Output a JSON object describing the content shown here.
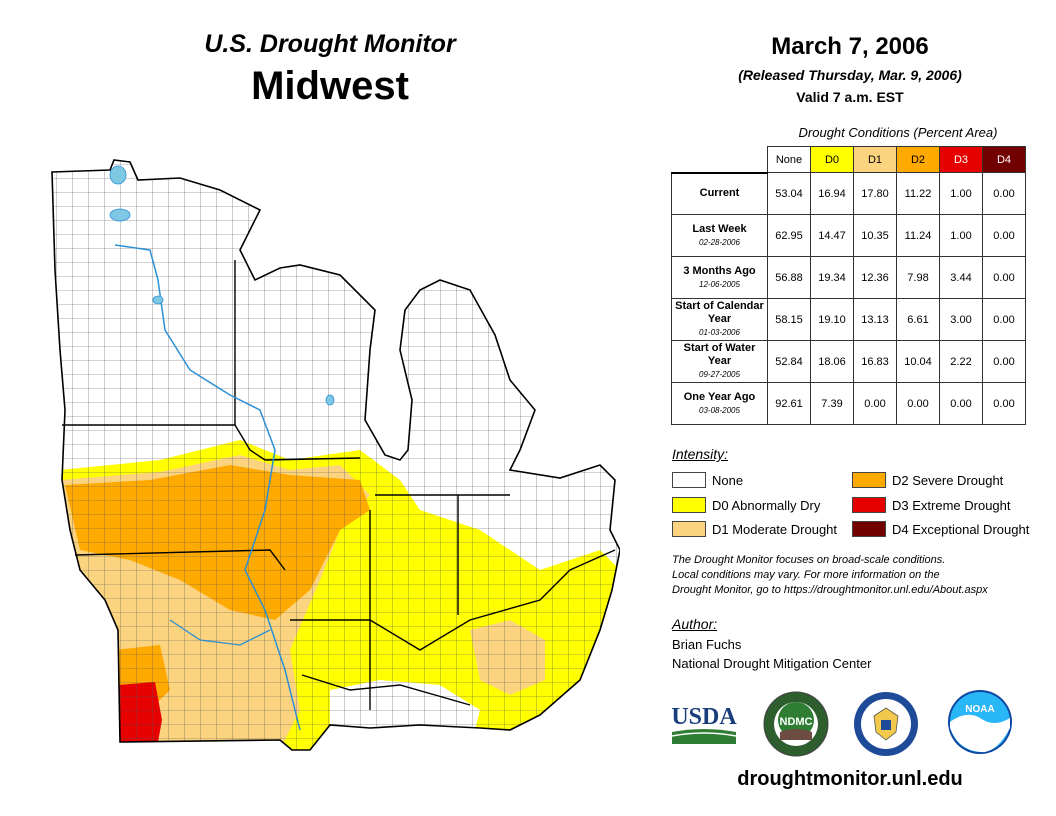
{
  "header": {
    "program": "U.S. Drought Monitor",
    "region": "Midwest",
    "date": "March 7, 2006",
    "released": "(Released Thursday, Mar. 9, 2006)",
    "valid": "Valid 7 a.m. EST"
  },
  "table": {
    "caption": "Drought Conditions (Percent Area)",
    "columns": [
      {
        "label": "None",
        "color": "#ffffff"
      },
      {
        "label": "D0",
        "color": "#ffff00"
      },
      {
        "label": "D1",
        "color": "#fcd37f"
      },
      {
        "label": "D2",
        "color": "#ffaa00"
      },
      {
        "label": "D3",
        "color": "#e60000"
      },
      {
        "label": "D4",
        "color": "#730000"
      }
    ],
    "rows": [
      {
        "label": "Current",
        "sub": "",
        "values": [
          "53.04",
          "16.94",
          "17.80",
          "11.22",
          "1.00",
          "0.00"
        ]
      },
      {
        "label": "Last Week",
        "sub": "02-28-2006",
        "values": [
          "62.95",
          "14.47",
          "10.35",
          "11.24",
          "1.00",
          "0.00"
        ]
      },
      {
        "label": "3 Months Ago",
        "sub": "12-06-2005",
        "values": [
          "56.88",
          "19.34",
          "12.36",
          "7.98",
          "3.44",
          "0.00"
        ]
      },
      {
        "label": "Start of Calendar Year",
        "sub": "01-03-2006",
        "values": [
          "58.15",
          "19.10",
          "13.13",
          "6.61",
          "3.00",
          "0.00"
        ]
      },
      {
        "label": "Start of Water Year",
        "sub": "09-27-2005",
        "values": [
          "52.84",
          "18.06",
          "16.83",
          "10.04",
          "2.22",
          "0.00"
        ]
      },
      {
        "label": "One Year Ago",
        "sub": "03-08-2005",
        "values": [
          "92.61",
          "7.39",
          "0.00",
          "0.00",
          "0.00",
          "0.00"
        ]
      }
    ]
  },
  "legend": {
    "title": "Intensity:",
    "items": [
      {
        "label": "None",
        "color": "#ffffff"
      },
      {
        "label": "D0 Abnormally Dry",
        "color": "#ffff00"
      },
      {
        "label": "D1 Moderate Drought",
        "color": "#fcd37f"
      },
      {
        "label": "D2 Severe Drought",
        "color": "#ffaa00"
      },
      {
        "label": "D3 Extreme Drought",
        "color": "#e60000"
      },
      {
        "label": "D4 Exceptional Drought",
        "color": "#730000"
      }
    ]
  },
  "note": {
    "line1": "The Drought Monitor focuses on broad-scale conditions.",
    "line2": "Local conditions may vary. For more information on the",
    "line3": "Drought Monitor, go to https://droughtmonitor.unl.edu/About.aspx"
  },
  "author": {
    "title": "Author:",
    "name": "Brian Fuchs",
    "org": "National Drought Mitigation Center"
  },
  "logos": {
    "usda": "USDA",
    "ndmc": "NDMC",
    "noaa": "NOAA"
  },
  "website": "droughtmonitor.unl.edu"
}
